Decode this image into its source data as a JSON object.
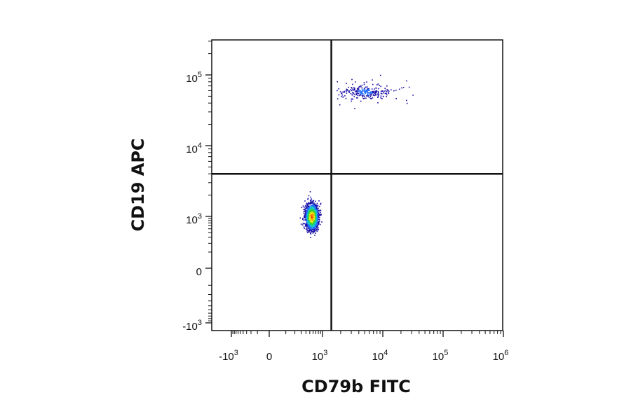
{
  "chart_data": {
    "type": "scatter",
    "xlabel": "CD79b FITC",
    "ylabel": "CD19 APC",
    "x_scale": "biexponential",
    "y_scale": "biexponential",
    "xlim": [
      -2000,
      1000000
    ],
    "ylim": [
      -1500,
      300000
    ],
    "x_ticks": [
      {
        "value": -1000,
        "base": "-10",
        "exp": "3"
      },
      {
        "value": 0,
        "base": "0",
        "exp": ""
      },
      {
        "value": 1000,
        "base": "10",
        "exp": "3"
      },
      {
        "value": 10000,
        "base": "10",
        "exp": "4"
      },
      {
        "value": 100000,
        "base": "10",
        "exp": "5"
      },
      {
        "value": 1000000,
        "base": "10",
        "exp": "6"
      }
    ],
    "y_ticks": [
      {
        "value": 100000,
        "base": "10",
        "exp": "5"
      },
      {
        "value": 10000,
        "base": "10",
        "exp": "4"
      },
      {
        "value": 1000,
        "base": "10",
        "exp": "3"
      },
      {
        "value": 0,
        "base": "0",
        "exp": ""
      },
      {
        "value": -1000,
        "base": "-10",
        "exp": "3"
      }
    ],
    "quadrant_gate": {
      "x": 1400,
      "y": 4000
    },
    "density_colormap": [
      "#1a0fa8",
      "#1e6cff",
      "#17c8c8",
      "#2fd12f",
      "#e8e81a",
      "#ff8c00",
      "#e81010"
    ],
    "populations": [
      {
        "center_x": 550,
        "center_y": 1000,
        "spread_x": 200,
        "spread_y": 450,
        "count": 1800,
        "density": "high"
      },
      {
        "center_x": 5000,
        "center_y": 58000,
        "spread_x": 3500,
        "spread_y": 14000,
        "count": 260,
        "density": "low"
      }
    ],
    "grid": false,
    "legend": "none"
  }
}
